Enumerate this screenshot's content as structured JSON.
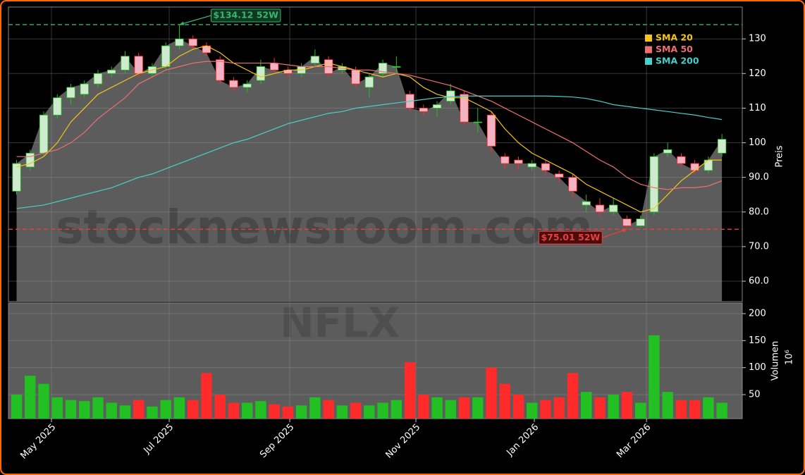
{
  "chart_data": [
    {
      "type": "candlestick",
      "categories": [
        null,
        null,
        null,
        null,
        null,
        null,
        null,
        null,
        null,
        null,
        null,
        null,
        null,
        null,
        null,
        null,
        null,
        null,
        null,
        null,
        null,
        null,
        null,
        null,
        null,
        null,
        null,
        null,
        null,
        null,
        null,
        null,
        null,
        null,
        null,
        null,
        null,
        null,
        null,
        null,
        null,
        null,
        null,
        null,
        null,
        null,
        null,
        null,
        null,
        null,
        null,
        null,
        null
      ],
      "open": [
        86,
        93,
        97,
        108,
        113,
        114,
        117,
        120,
        121,
        125,
        120,
        122,
        128,
        130,
        128,
        124,
        118,
        116,
        118,
        123,
        121,
        120,
        123,
        124,
        121,
        121,
        116,
        120,
        122,
        114,
        110,
        110,
        112,
        114,
        106,
        108,
        96,
        95,
        93,
        94,
        91,
        90,
        82,
        82,
        80,
        78,
        76,
        80,
        97,
        96,
        94,
        92,
        97
      ],
      "high": [
        95,
        98,
        109,
        114,
        117,
        118,
        121,
        122,
        126.5,
        126,
        123,
        129,
        134.12,
        131,
        129,
        125,
        119,
        118,
        124,
        124.5,
        122,
        123,
        127,
        125,
        123,
        122,
        120,
        124,
        125,
        115,
        111,
        112,
        117,
        115,
        110,
        109,
        97,
        96,
        95,
        95,
        92,
        91,
        85,
        84,
        84,
        79,
        79,
        97,
        100,
        97,
        95,
        96,
        102.5
      ],
      "low": [
        85,
        92,
        96,
        107,
        111,
        113,
        116,
        119,
        120,
        119,
        119,
        121,
        127,
        127,
        125,
        117,
        115,
        114.5,
        117,
        120,
        119,
        119,
        122,
        119,
        120,
        116,
        113,
        119,
        120,
        109,
        108,
        107.5,
        111,
        105,
        103,
        97,
        92.5,
        92,
        92,
        90.5,
        88.5,
        84,
        80,
        78.5,
        79,
        75.01,
        75.5,
        79,
        96,
        93,
        91,
        91,
        96
      ],
      "close": [
        94,
        97,
        108,
        113,
        116,
        117,
        120,
        121,
        125,
        120,
        122,
        128,
        130,
        128,
        126,
        118,
        116,
        117,
        122,
        121,
        120,
        122,
        125,
        120,
        122,
        117,
        119,
        123,
        122,
        110,
        109,
        111,
        115,
        106,
        106,
        99,
        94,
        94,
        94,
        92,
        90,
        86,
        83,
        80,
        82,
        76,
        78,
        96,
        98,
        94,
        92,
        95,
        101
      ],
      "up_color": "#22c022",
      "down_color": "#ff2a2a",
      "series": [
        {
          "name": "SMA 20",
          "color": "#f5c518",
          "values": [
            93,
            94,
            96,
            100,
            106,
            110,
            114,
            116,
            118,
            120,
            121,
            122,
            125,
            127,
            128,
            126,
            123,
            121,
            119,
            120,
            121,
            121,
            122,
            123,
            122,
            121,
            120,
            119,
            120,
            119,
            116,
            114,
            113,
            113,
            111,
            109,
            104,
            100,
            97,
            95,
            93,
            91,
            88,
            86,
            84,
            82,
            80,
            81,
            85,
            89,
            92,
            95,
            95
          ]
        },
        {
          "name": "SMA 50",
          "color": "#f07070",
          "values": [
            96,
            96,
            97,
            98,
            100,
            103,
            107,
            110,
            113,
            117,
            119,
            121,
            122,
            123,
            123.5,
            123.5,
            123,
            123,
            123,
            123,
            122.5,
            122,
            122,
            122,
            121.5,
            121,
            121,
            120.5,
            120,
            119.5,
            118.5,
            117.5,
            116.5,
            115,
            113.5,
            112,
            110,
            108,
            106,
            104,
            102,
            100,
            97.5,
            95,
            93,
            90,
            88,
            87,
            86.5,
            87,
            87,
            87.5,
            89
          ]
        },
        {
          "name": "SMA 200",
          "color": "#48d1cc",
          "values": [
            81,
            81.5,
            82,
            83,
            84,
            85,
            86,
            87,
            88.5,
            90,
            91,
            92.5,
            94,
            95.5,
            97,
            98.5,
            100,
            101,
            102.5,
            104,
            105.5,
            106.5,
            107.5,
            108.5,
            109,
            110,
            110.5,
            111,
            111.5,
            112,
            112.5,
            113,
            113.3,
            113.5,
            113.5,
            113.5,
            113.5,
            113.5,
            113.5,
            113.5,
            113.4,
            113.2,
            112.8,
            112,
            111,
            110.5,
            110,
            109.5,
            109,
            108.5,
            108,
            107.3,
            106.7
          ]
        }
      ],
      "hlines": [
        {
          "value": 134.12,
          "label": "$134.12 52W",
          "color": "#3cb371"
        },
        {
          "value": 75.01,
          "label": "$75.01 52W",
          "color": "#e84040"
        }
      ],
      "xlim": [
        -0.6,
        53.5
      ],
      "xticks": [
        {
          "value": 2.57,
          "label": "May 2025"
        },
        {
          "value": 11.25,
          "label": "Jul 2025"
        },
        {
          "value": 20.14,
          "label": "Sep 2025"
        },
        {
          "value": 29.44,
          "label": "Nov 2025"
        },
        {
          "value": 38.17,
          "label": "Jan 2026"
        },
        {
          "value": 46.44,
          "label": "Mar 2026"
        }
      ],
      "ylim": [
        54.1,
        139.2
      ],
      "yticks": [
        {
          "value": 60,
          "label": "60.0"
        },
        {
          "value": 70,
          "label": "70.0"
        },
        {
          "value": 80,
          "label": "80.0"
        },
        {
          "value": 90,
          "label": "90.0"
        },
        100,
        110,
        120,
        130
      ],
      "y_label": "Preis",
      "legend": "upper right",
      "grid": true,
      "watermark": "stocknewsroom.com"
    },
    {
      "type": "bar",
      "values": [
        50,
        85,
        70,
        45,
        40,
        38,
        45,
        35,
        30,
        40,
        28,
        40,
        45,
        40,
        90,
        50,
        35,
        35,
        38,
        32,
        28,
        30,
        45,
        40,
        30,
        35,
        30,
        35,
        40,
        110,
        50,
        45,
        40,
        45,
        45,
        100,
        70,
        50,
        35,
        40,
        45,
        90,
        55,
        45,
        50,
        55,
        35,
        160,
        55,
        40,
        40,
        45,
        35
      ],
      "ylim": [
        5.6,
        219.6
      ],
      "yticks": [
        50,
        100,
        150,
        200
      ],
      "y_label": "Volumen",
      "y_scale_label": "10⁶",
      "grid": true,
      "watermark": "NFLX"
    }
  ]
}
